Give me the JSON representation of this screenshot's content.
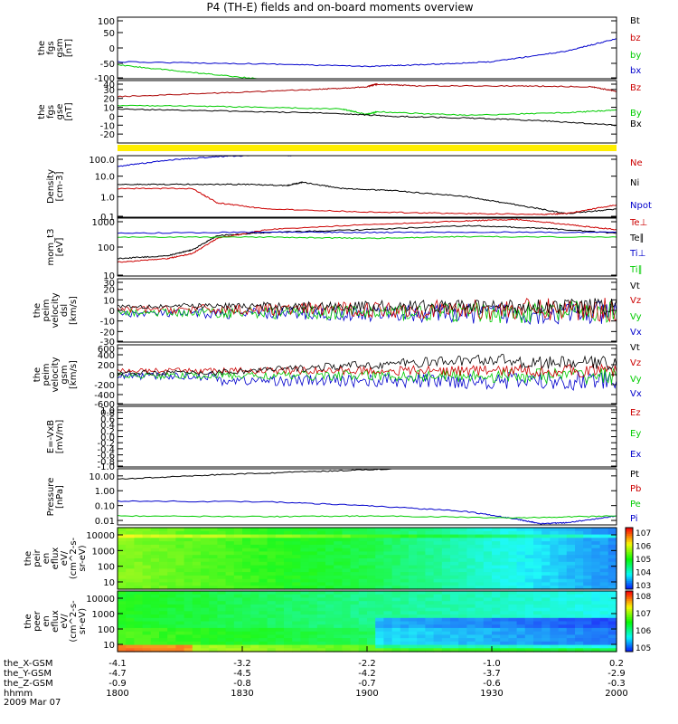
{
  "chart_data": {
    "title": "P4 (TH-E) fields and on-board moments overview",
    "type": "line",
    "panels": [
      {
        "id": "fgs_gsm",
        "ylabel": [
          "the",
          "fgs",
          "gsm",
          "[nT]"
        ],
        "ylim": [
          -100,
          100
        ],
        "yticks": [
          "100",
          "50",
          "0",
          "-50",
          "-100"
        ],
        "legend": [
          {
            "name": "Bt",
            "color": "#000000"
          },
          {
            "name": "bz",
            "color": "#cc0000"
          },
          {
            "name": "by",
            "color": "#00cc00"
          },
          {
            "name": "bx",
            "color": "#0000cc"
          }
        ],
        "series": [
          {
            "name": "bx",
            "color": "#0000cc",
            "x": [
              0,
              0.3,
              0.5,
              0.6,
              0.75,
              0.9,
              1.0
            ],
            "y": [
              -45,
              -52,
              -60,
              -55,
              -45,
              -10,
              30
            ]
          },
          {
            "name": "by",
            "color": "#00cc00",
            "x": [
              0,
              0.15,
              0.28
            ],
            "y": [
              -55,
              -80,
              -100
            ]
          }
        ]
      },
      {
        "id": "fgs_gse",
        "ylabel": [
          "the",
          "fgs",
          "gse",
          "[nT]"
        ],
        "ylim": [
          -30,
          40
        ],
        "yticks": [
          "40",
          "30",
          "20",
          "10",
          "0",
          "-10",
          "-20"
        ],
        "legend": [
          {
            "name": "Bz",
            "color": "#cc0000"
          },
          {
            "name": "By",
            "color": "#00cc00"
          },
          {
            "name": "Bx",
            "color": "#000000"
          }
        ],
        "series": [
          {
            "name": "Bz",
            "color": "#aa0000",
            "x": [
              0,
              0.2,
              0.4,
              0.5,
              0.52,
              0.6,
              0.8,
              0.95,
              1.0
            ],
            "y": [
              22,
              26,
              30,
              33,
              36,
              34,
              34,
              33,
              28
            ]
          },
          {
            "name": "By",
            "color": "#00cc00",
            "x": [
              0,
              0.2,
              0.45,
              0.5,
              0.52,
              0.7,
              0.9,
              1.0
            ],
            "y": [
              12,
              11,
              8,
              2,
              5,
              1,
              4,
              7
            ]
          },
          {
            "name": "Bx",
            "color": "#000000",
            "x": [
              0,
              0.2,
              0.45,
              0.55,
              0.7,
              0.85,
              1.0
            ],
            "y": [
              8,
              6,
              3,
              0,
              -2,
              -5,
              -10
            ]
          }
        ]
      },
      {
        "id": "density",
        "ylabel": [
          "Density",
          "[cm-3]"
        ],
        "scale": "log",
        "ylim": [
          0.1,
          100
        ],
        "yticks": [
          "100.0",
          "10.0",
          "1.0",
          "0.1"
        ],
        "legend": [
          {
            "name": "Ne",
            "color": "#cc0000"
          },
          {
            "name": "Ni",
            "color": "#000000"
          },
          {
            "name": "Npot",
            "color": "#0000cc"
          }
        ],
        "series": [
          {
            "name": "Ni",
            "color": "#000000",
            "x": [
              0,
              0.1,
              0.25,
              0.34,
              0.37,
              0.45,
              0.55,
              0.7,
              0.8,
              0.9,
              1.0
            ],
            "y": [
              4,
              4,
              4,
              3.5,
              5,
              2.5,
              2,
              1,
              0.4,
              0.15,
              0.25
            ]
          },
          {
            "name": "Ne",
            "color": "#cc0000",
            "x": [
              0,
              0.15,
              0.2,
              0.3,
              0.5,
              0.7,
              0.85,
              0.9,
              1.0
            ],
            "y": [
              2.5,
              2.5,
              0.5,
              0.25,
              0.18,
              0.15,
              0.14,
              0.15,
              0.4
            ]
          },
          {
            "name": "Npot",
            "color": "#0000cc",
            "x": [
              0,
              0.1,
              0.2,
              0.3,
              0.35
            ],
            "y": [
              30,
              60,
              90,
              110,
              100
            ]
          }
        ]
      },
      {
        "id": "mom_t",
        "ylabel": [
          "mom_t3",
          "[eV]"
        ],
        "scale": "log",
        "ylim": [
          10,
          1000
        ],
        "yticks": [
          "1000",
          "100",
          "10"
        ],
        "legend": [
          {
            "name": "Te⊥",
            "color": "#cc0000"
          },
          {
            "name": "Te∥",
            "color": "#000000"
          },
          {
            "name": "Ti⊥",
            "color": "#0000cc"
          },
          {
            "name": "Ti∥",
            "color": "#00cc00"
          }
        ],
        "series": [
          {
            "name": "Te∥",
            "color": "#000000",
            "x": [
              0,
              0.1,
              0.15,
              0.2,
              0.3,
              0.5,
              0.7,
              0.85,
              1.0
            ],
            "y": [
              40,
              50,
              80,
              250,
              320,
              400,
              550,
              450,
              300
            ]
          },
          {
            "name": "Te⊥",
            "color": "#cc0000",
            "x": [
              0,
              0.1,
              0.15,
              0.2,
              0.3,
              0.5,
              0.7,
              0.8,
              0.9,
              1.0
            ],
            "y": [
              30,
              40,
              60,
              200,
              400,
              600,
              800,
              900,
              600,
              400
            ]
          },
          {
            "name": "Ti⊥",
            "color": "#0000cc",
            "x": [
              0,
              0.3,
              0.5,
              0.7,
              1.0
            ],
            "y": [
              300,
              330,
              320,
              330,
              320
            ]
          },
          {
            "name": "Ti∥",
            "color": "#00cc00",
            "x": [
              0,
              0.3,
              0.5,
              0.7,
              1.0
            ],
            "y": [
              220,
              220,
              200,
              230,
              220
            ]
          }
        ]
      },
      {
        "id": "velocity_dsl",
        "ylabel": [
          "the",
          "peim",
          "velocity",
          "dsl",
          "[km/s]"
        ],
        "ylim": [
          -30,
          30
        ],
        "yticks": [
          "30",
          "20",
          "10",
          "0",
          "-10",
          "-20",
          "-30"
        ],
        "legend": [
          {
            "name": "Vt",
            "color": "#000000"
          },
          {
            "name": "Vz",
            "color": "#cc0000"
          },
          {
            "name": "Vy",
            "color": "#00cc00"
          },
          {
            "name": "Vx",
            "color": "#0000cc"
          }
        ]
      },
      {
        "id": "velocity_gsm",
        "ylabel": [
          "the",
          "peim",
          "velocity",
          "gsm",
          "[km/s]"
        ],
        "ylim": [
          -600,
          600
        ],
        "yticks": [
          "600",
          "400",
          "200",
          "0",
          "-200",
          "-400",
          "-600"
        ],
        "legend": [
          {
            "name": "Vt",
            "color": "#000000"
          },
          {
            "name": "Vz",
            "color": "#cc0000"
          },
          {
            "name": "Vy",
            "color": "#00cc00"
          },
          {
            "name": "Vx",
            "color": "#0000cc"
          }
        ]
      },
      {
        "id": "efield",
        "ylabel": [
          "E=-VxB",
          "[mV/m]"
        ],
        "ylim": [
          -1,
          1
        ],
        "yticks": [
          "1.0",
          "0.8",
          "0.6",
          "0.4",
          "0.2",
          "0.0",
          "-0.2",
          "-0.4",
          "-0.6",
          "-0.8",
          "-1.0"
        ],
        "legend": [
          {
            "name": "Ez",
            "color": "#cc0000"
          },
          {
            "name": "Ey",
            "color": "#00cc00"
          },
          {
            "name": "Ex",
            "color": "#0000cc"
          }
        ]
      },
      {
        "id": "pressure",
        "ylabel": [
          "Pressure",
          "[nPa]"
        ],
        "scale": "log",
        "ylim": [
          0.005,
          30
        ],
        "yticks": [
          "10.00",
          "1.00",
          "0.10",
          "0.01"
        ],
        "legend": [
          {
            "name": "Pt",
            "color": "#000000"
          },
          {
            "name": "Pb",
            "color": "#cc0000"
          },
          {
            "name": "Pe",
            "color": "#00cc00"
          },
          {
            "name": "Pi",
            "color": "#0000cc"
          }
        ],
        "series": [
          {
            "name": "Pt",
            "color": "#000000",
            "x": [
              0,
              0.2,
              0.4,
              0.55
            ],
            "y": [
              6,
              12,
              20,
              30
            ]
          },
          {
            "name": "Pi",
            "color": "#0000cc",
            "x": [
              0,
              0.3,
              0.5,
              0.7,
              0.8,
              0.85,
              0.9,
              1.0
            ],
            "y": [
              0.2,
              0.18,
              0.1,
              0.04,
              0.012,
              0.006,
              0.007,
              0.02
            ]
          },
          {
            "name": "Pe",
            "color": "#00cc00",
            "x": [
              0,
              0.3,
              0.5,
              0.8,
              1.0
            ],
            "y": [
              0.02,
              0.018,
              0.02,
              0.015,
              0.02
            ]
          }
        ]
      },
      {
        "id": "peir_spec",
        "type": "heatmap",
        "ylabel": [
          "the",
          "peir",
          "en",
          "eflux",
          "eV/",
          "(cm^2-s-",
          "sr-eV)"
        ],
        "yticks": [
          "10000",
          "1000",
          "100",
          "10"
        ],
        "colorbar": [
          "10^7",
          "10^6",
          "10^5",
          "10^4",
          "10^3"
        ]
      },
      {
        "id": "peer_spec",
        "type": "heatmap",
        "ylabel": [
          "the",
          "peer",
          "en",
          "eflux",
          "eV/",
          "(cm^2-s-",
          "sr-eV)"
        ],
        "yticks": [
          "10000",
          "1000",
          "100",
          "10"
        ],
        "colorbar": [
          "10^8",
          "10^7",
          "10^6",
          "10^5"
        ]
      }
    ],
    "xaxis": {
      "rows": [
        {
          "label": "the_X-GSM",
          "values": [
            "-4.1",
            "-3.2",
            "-2.2",
            "-1.0",
            "0.2"
          ]
        },
        {
          "label": "the_Y-GSM",
          "values": [
            "-4.7",
            "-4.5",
            "-4.2",
            "-3.7",
            "-2.9"
          ]
        },
        {
          "label": "the_Z-GSM",
          "values": [
            "-0.9",
            "-0.8",
            "-0.7",
            "-0.6",
            "-0.3"
          ]
        },
        {
          "label": "hhmm",
          "values": [
            "1800",
            "1830",
            "1900",
            "1930",
            "2000"
          ]
        }
      ],
      "date": "2009 Mar 07"
    }
  },
  "colors": {
    "yellow_bar": "#ffee00",
    "axis": "#000000"
  }
}
